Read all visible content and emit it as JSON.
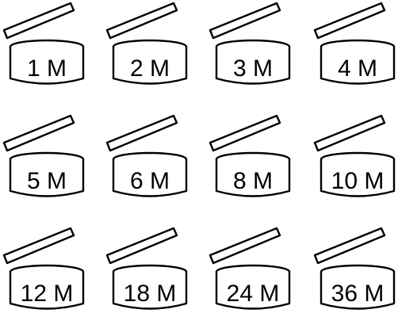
{
  "symbols": [
    {
      "label": "1 M"
    },
    {
      "label": "2 M"
    },
    {
      "label": "3 M"
    },
    {
      "label": "4 M"
    },
    {
      "label": "5 M"
    },
    {
      "label": "6 M"
    },
    {
      "label": "8 M"
    },
    {
      "label": "10 M"
    },
    {
      "label": "12 M"
    },
    {
      "label": "18 M"
    },
    {
      "label": "24 M"
    },
    {
      "label": "36 M"
    }
  ],
  "colors": {
    "stroke": "#000000",
    "background": "#ffffff"
  },
  "icons": [
    "open-jar-icon"
  ]
}
